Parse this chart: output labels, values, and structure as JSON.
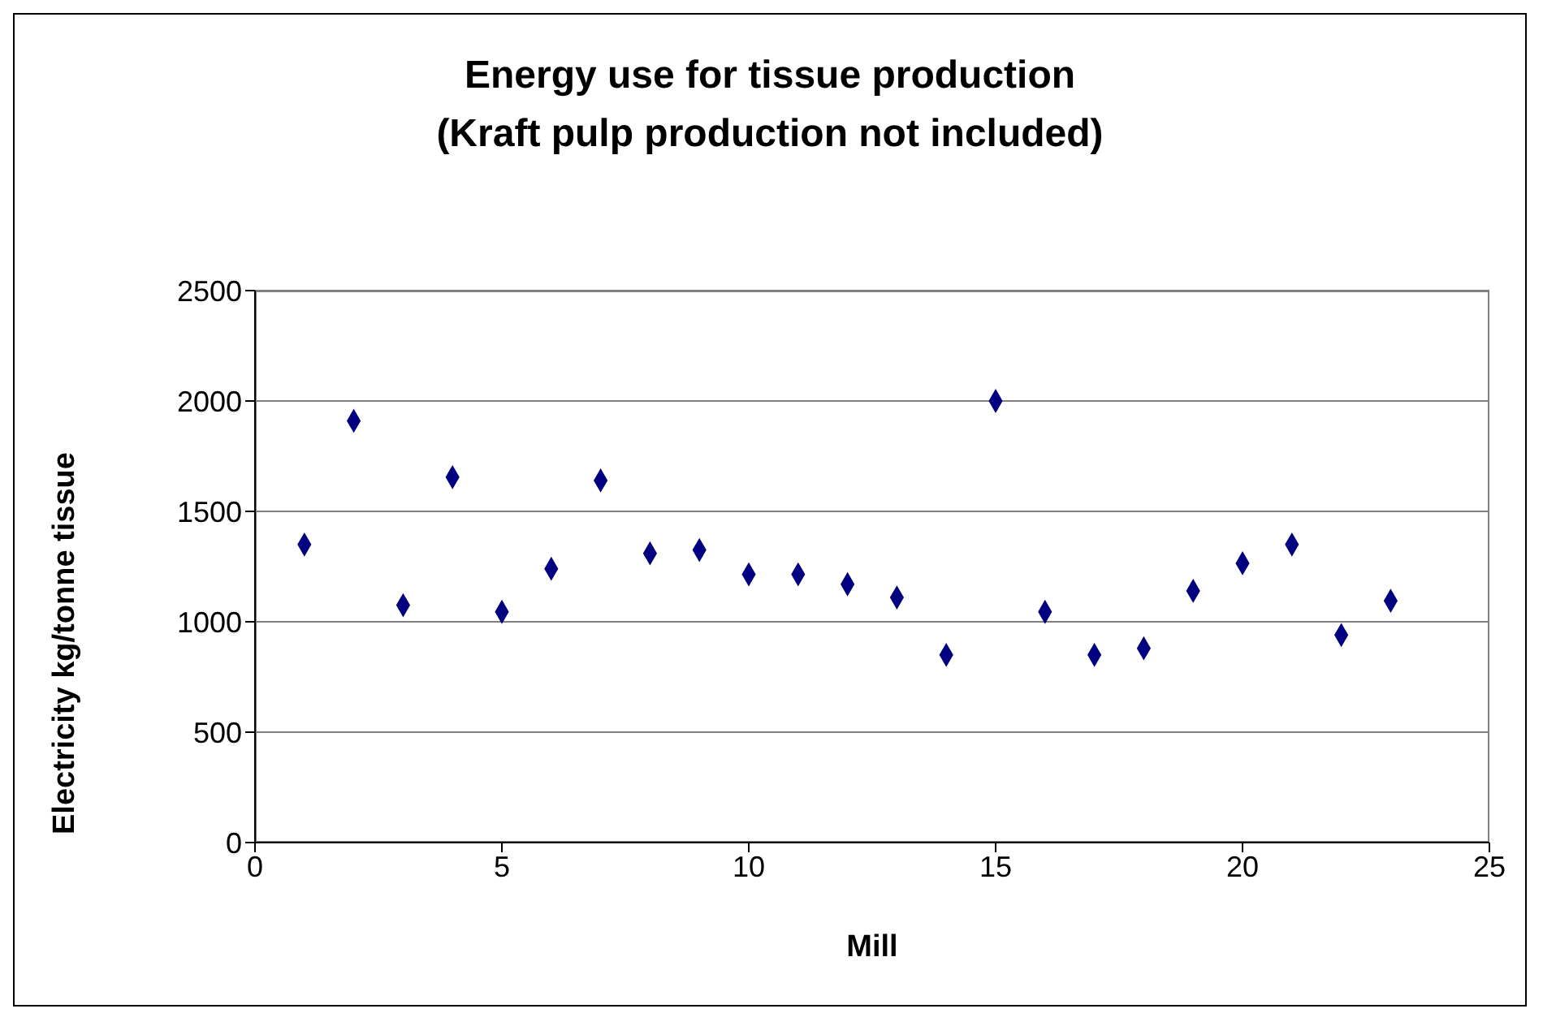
{
  "chart_data": {
    "type": "scatter",
    "title": "Energy use for tissue production\n(Kraft pulp production not included)",
    "xlabel": "Mill",
    "ylabel": "Electricity kg/tonne tissue",
    "x": [
      1,
      2,
      3,
      4,
      5,
      6,
      7,
      8,
      9,
      10,
      11,
      12,
      13,
      14,
      15,
      16,
      17,
      18,
      19,
      20,
      21,
      22,
      23
    ],
    "series": [
      {
        "color": "#000080",
        "values": [
          1350,
          1910,
          1075,
          1655,
          1045,
          1240,
          1640,
          1310,
          1325,
          1215,
          1215,
          1170,
          1110,
          850,
          2000,
          1045,
          850,
          880,
          1140,
          1265,
          1350,
          940,
          1095
        ]
      }
    ],
    "xlim": [
      0,
      25
    ],
    "xticks": [
      0,
      5,
      10,
      15,
      20,
      25
    ],
    "ylim": [
      0,
      2500
    ],
    "yticks": [
      0,
      500,
      1000,
      1500,
      2000,
      2500
    ],
    "grid": "y",
    "marker": "diamond",
    "legend": false
  }
}
